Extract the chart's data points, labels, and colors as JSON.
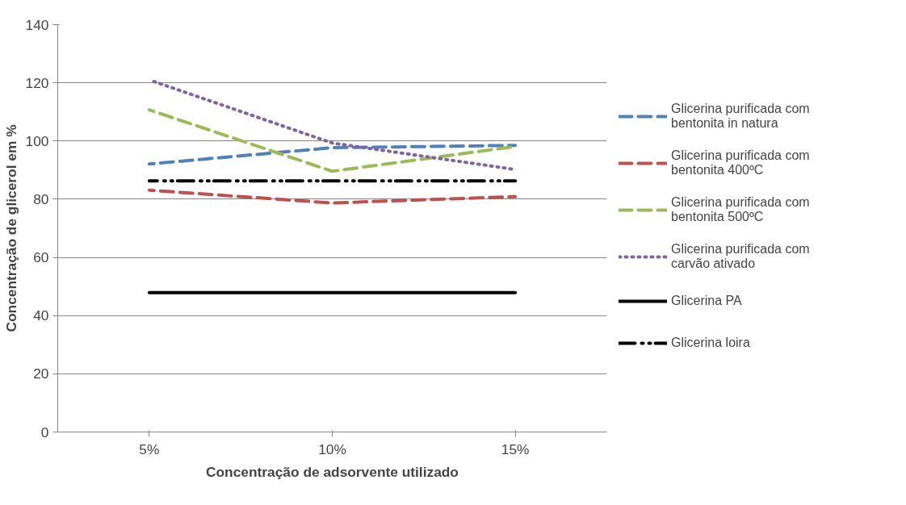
{
  "chart_data": {
    "type": "line",
    "xlabel": "Concentração de adsorvente utilizado",
    "ylabel": "Concentração de glicerol em %",
    "categories": [
      "5%",
      "10%",
      "15%"
    ],
    "ylim": [
      0,
      140
    ],
    "yticks": [
      0,
      20,
      40,
      60,
      80,
      100,
      120,
      140
    ],
    "grid": "y",
    "legend": "right",
    "series": [
      {
        "name": "Glicerina purificada com bentonita in natura",
        "color": "#4f81bd",
        "line_style": "dashed",
        "values": [
          92.1,
          97.7,
          98.5
        ]
      },
      {
        "name": "Glicerina purificada com bentonita 400ºC",
        "color": "#c0504d",
        "line_style": "dashed",
        "values": [
          83.1,
          78.7,
          80.9
        ]
      },
      {
        "name": "Glicerina purificada com bentonita 500ºC",
        "color": "#9bbb59",
        "line_style": "dashed",
        "values": [
          110.7,
          89.6,
          98.1
        ]
      },
      {
        "name": "Glicerina purificada com carvão ativado",
        "color": "#8064a2",
        "line_style": "dotted",
        "values": [
          121.0,
          99.3,
          90.2
        ]
      },
      {
        "name": "Glicerina PA",
        "color": "#000000",
        "line_style": "solid",
        "values": [
          47.9,
          47.9,
          47.9
        ]
      },
      {
        "name": "Glicerina loira",
        "color": "#000000",
        "line_style": "dashdotdot",
        "values": [
          86.3,
          86.3,
          86.3
        ]
      }
    ]
  }
}
